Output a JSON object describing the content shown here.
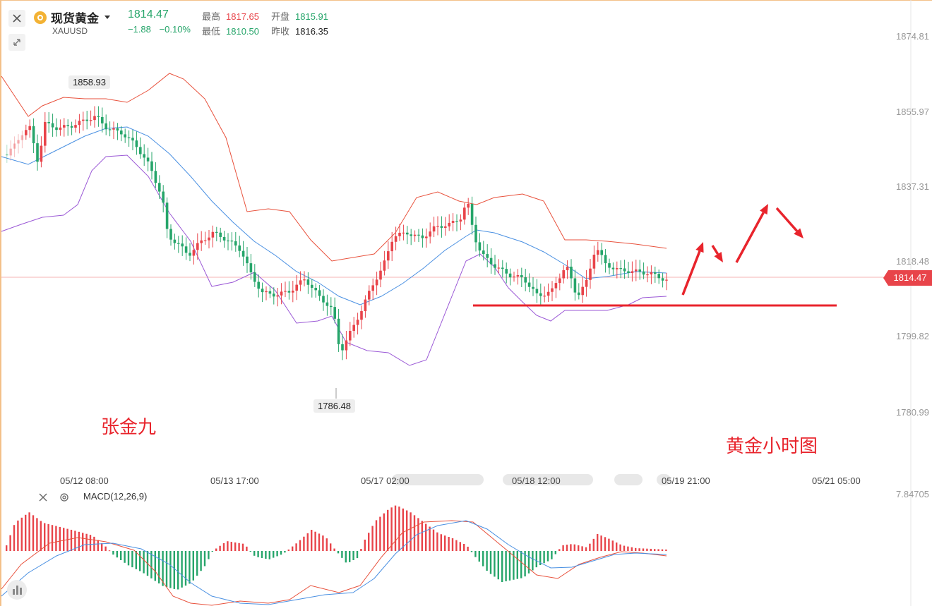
{
  "header": {
    "symbol_name": "现货黄金",
    "symbol_code": "XAUUSD",
    "last_price": "1814.47",
    "change": "−1.88",
    "change_pct": "−0.10%",
    "stats": {
      "high_label": "最高",
      "high_value": "1817.65",
      "open_label": "开盘",
      "open_value": "1815.91",
      "low_label": "最低",
      "low_value": "1810.50",
      "prev_label": "昨收",
      "prev_value": "1816.35"
    },
    "close_icon": "close-icon",
    "collapse_icon": "collapse-arrows-icon",
    "dropdown_icon": "caret-down-icon"
  },
  "price_axis": [
    "1874.81",
    "1855.97",
    "1837.31",
    "1818.48",
    "1799.82",
    "1780.99"
  ],
  "current_price_badge": "1814.47",
  "time_axis": [
    "05/12 08:00",
    "05/13 17:00",
    "05/17 02:00",
    "05/18 12:00",
    "05/19 21:00",
    "05/21 05:00"
  ],
  "markers": {
    "high": "1858.93",
    "low": "1786.48"
  },
  "annotations": {
    "author": "张金九",
    "chart_label": "黄金小时图"
  },
  "indicator": {
    "title": "MACD(12,26,9)",
    "axis_value": "7.84705",
    "close_icon": "close-icon",
    "settings_icon": "gear-icon"
  },
  "colors": {
    "up": "#e8444a",
    "down": "#26a56a",
    "boll_upper_lower": "#e8513c",
    "boll_mid": "#4a90e2",
    "boll_lower": "#9b59d6",
    "support_line": "#e8242c"
  }
}
